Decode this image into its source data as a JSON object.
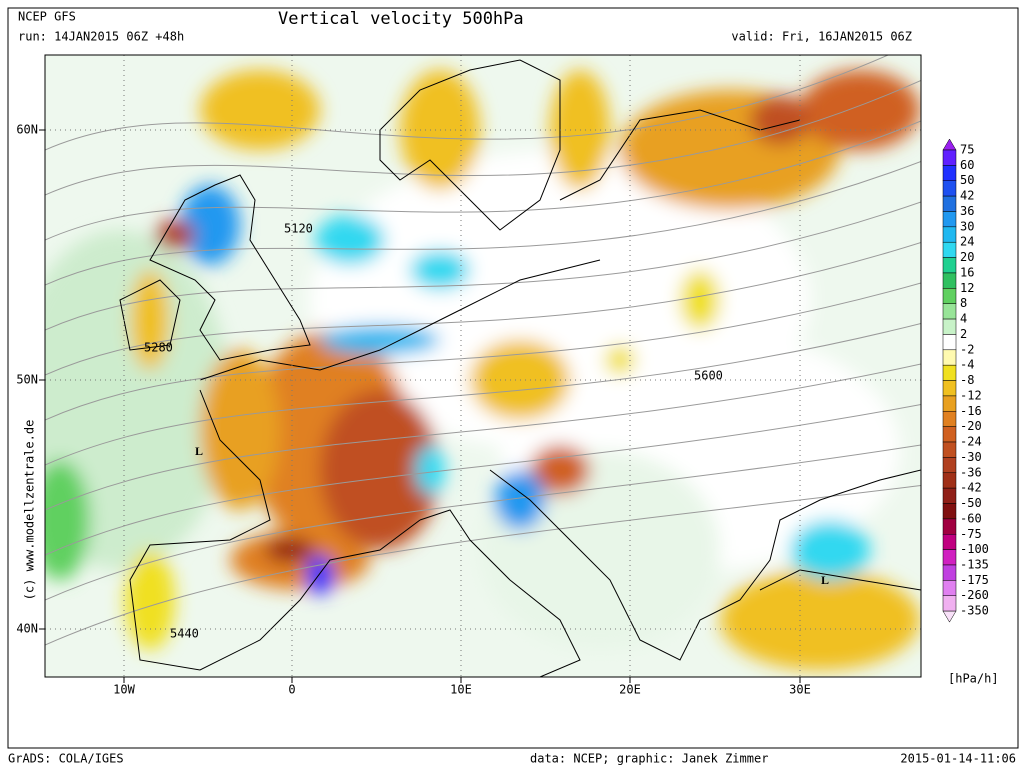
{
  "header": {
    "model": "NCEP GFS",
    "run": "run: 14JAN2015 06Z +48h",
    "title": "Vertical velocity 500hPa",
    "valid": "valid: Fri, 16JAN2015 06Z"
  },
  "map": {
    "lat_labels": [
      "60N",
      "50N",
      "40N"
    ],
    "lon_labels": [
      "10W",
      "0",
      "10E",
      "20E",
      "30E"
    ],
    "contour_labels": [
      "5120",
      "5280",
      "5600",
      "5440"
    ],
    "lows": [
      "L",
      "L"
    ]
  },
  "colorbar": {
    "labels": [
      "75",
      "60",
      "50",
      "42",
      "36",
      "30",
      "24",
      "20",
      "16",
      "12",
      "8",
      "4",
      "2",
      "-2",
      "-4",
      "-8",
      "-12",
      "-16",
      "-20",
      "-24",
      "-30",
      "-36",
      "-42",
      "-50",
      "-60",
      "-75",
      "-100",
      "-135",
      "-175",
      "-260",
      "-350"
    ],
    "colors": [
      "#9a20f0",
      "#6020ff",
      "#2030ff",
      "#1e50f0",
      "#2070e0",
      "#2098f0",
      "#20b8f0",
      "#30d8f0",
      "#20d090",
      "#30c060",
      "#60d060",
      "#98e498",
      "#c8f2c8",
      "#ffffff",
      "#fffab0",
      "#f0e020",
      "#f0c020",
      "#e8a020",
      "#e08020",
      "#d06020",
      "#c05020",
      "#b04020",
      "#a03018",
      "#902018",
      "#801010",
      "#a00040",
      "#c00080",
      "#d020c0",
      "#c040e0",
      "#e080f0",
      "#f0b0f0",
      "#f8e0f8"
    ],
    "unit": "[hPa/h]"
  },
  "credit": "(c) www.modellzentrale.de",
  "footer": {
    "left": "GrADS: COLA/IGES",
    "middle": "data: NCEP; graphic: Janek Zimmer",
    "right": "2015-01-14-11:06"
  }
}
